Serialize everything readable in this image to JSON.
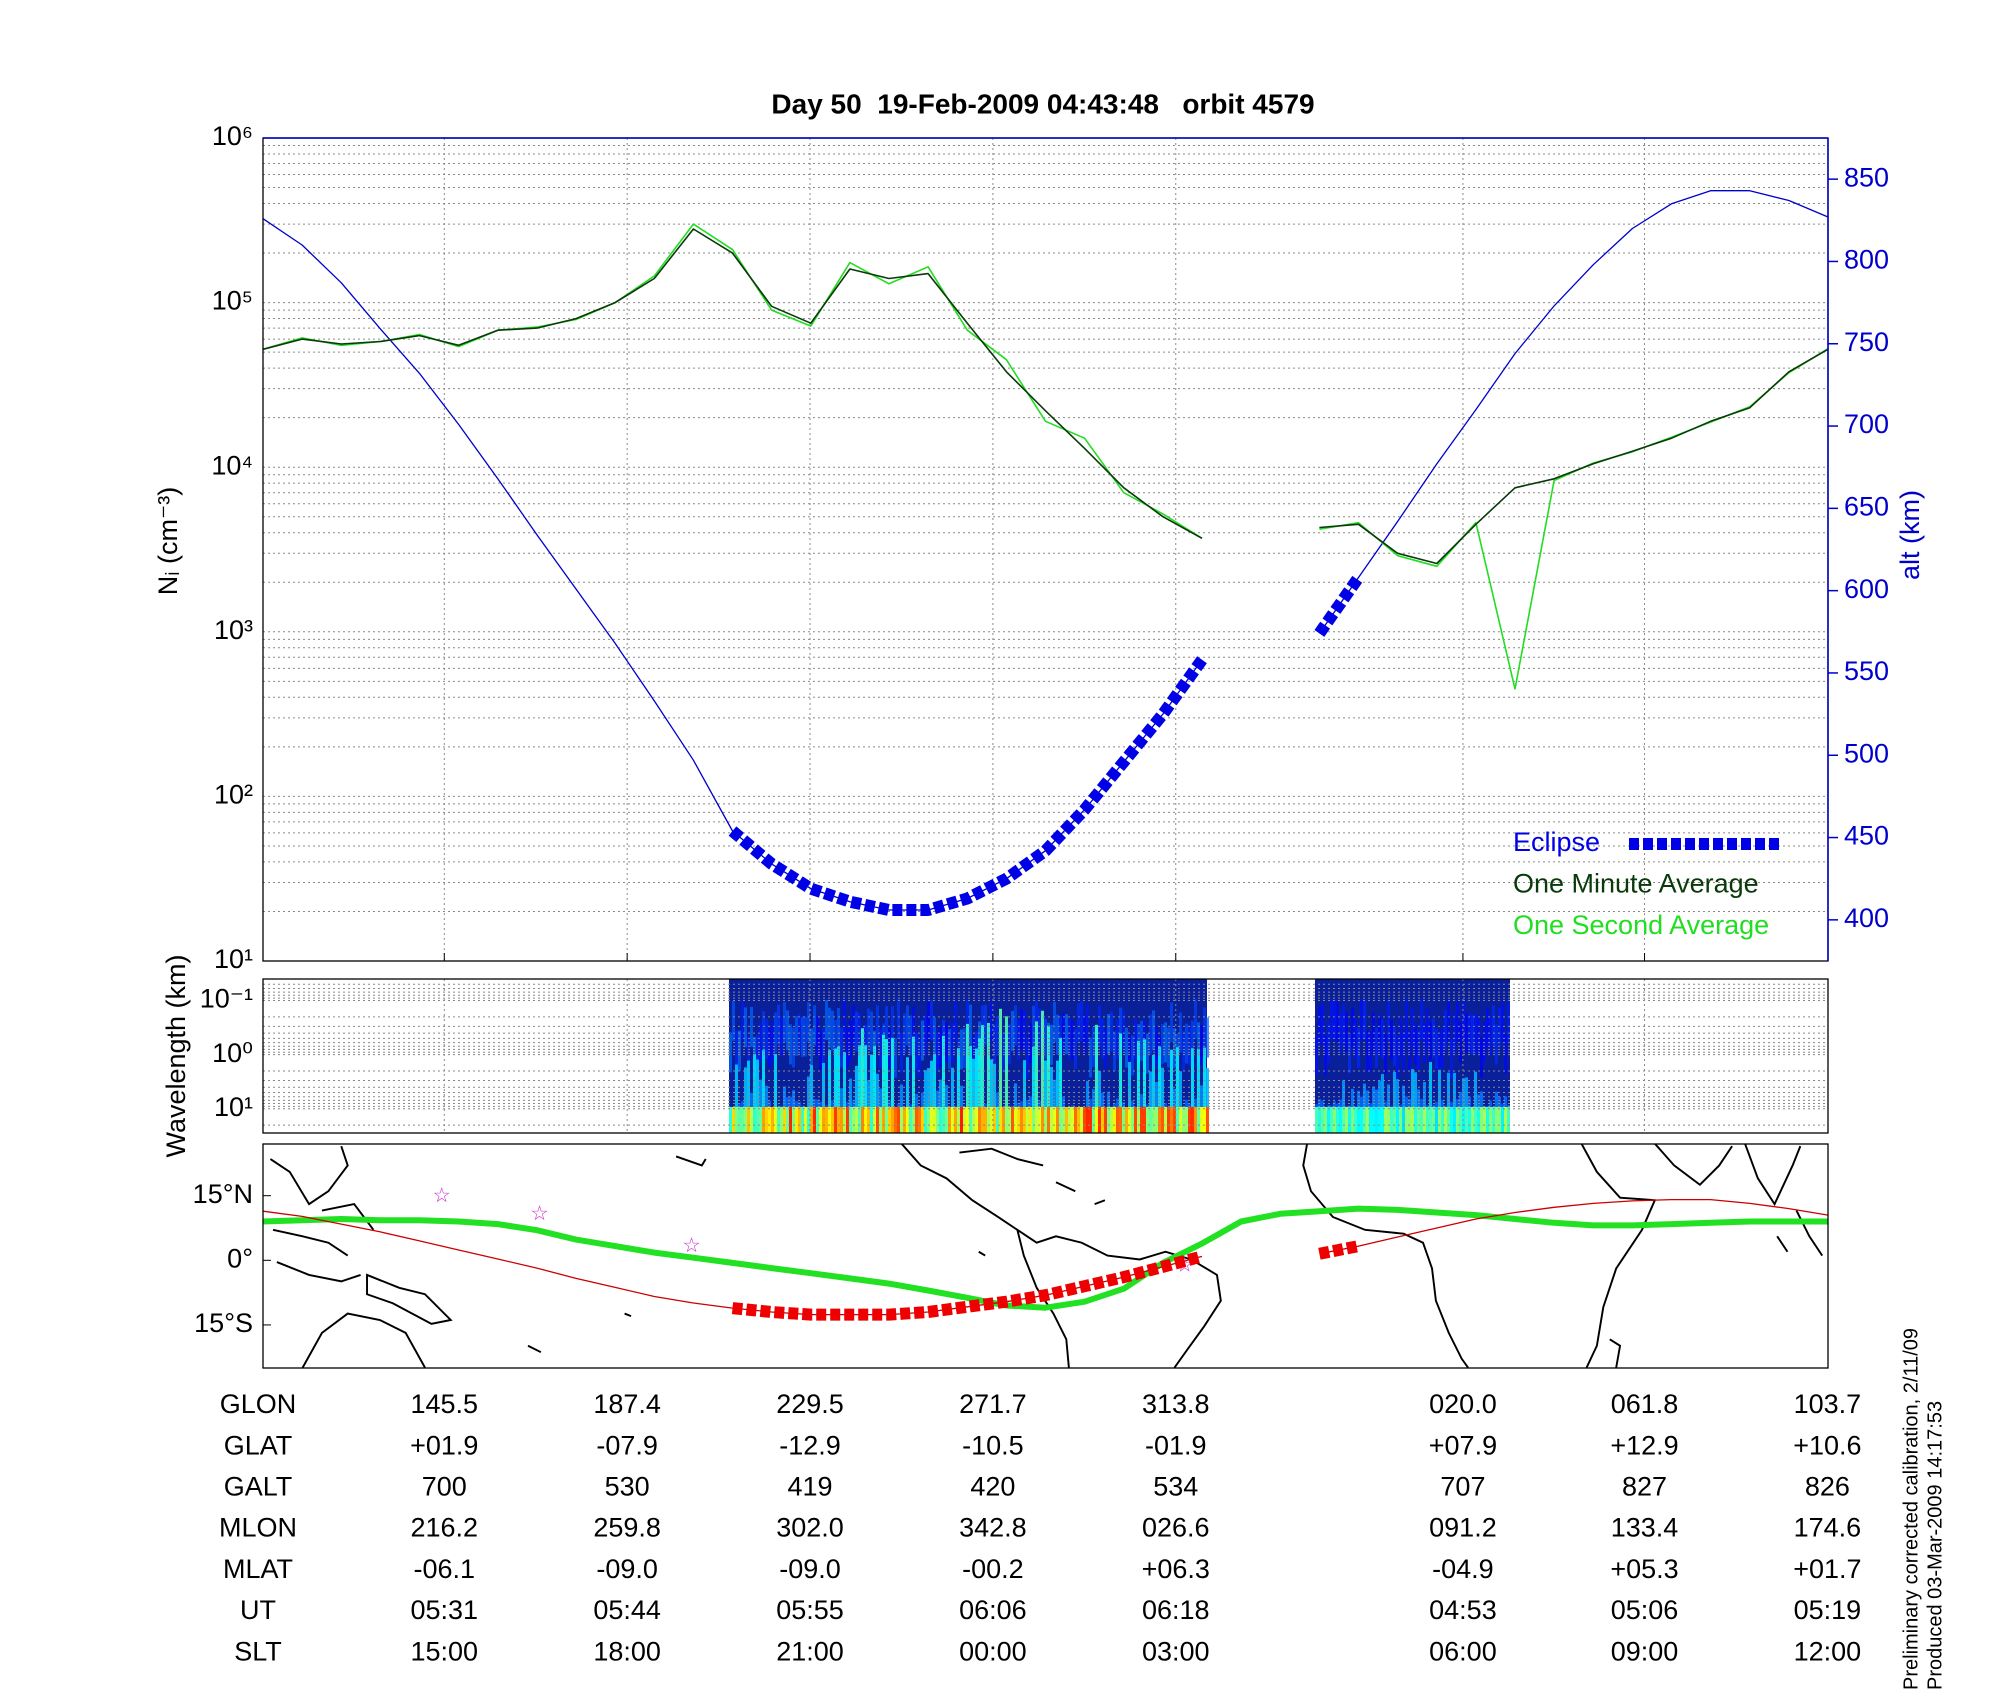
{
  "chart_data": [
    {
      "type": "line",
      "title": "Day 50  19-Feb-2009 04:43:48   orbit 4579",
      "ylabel": "Nᵢ (cm⁻³)",
      "y2label": "alt (km)",
      "y2color": "#0000cc",
      "log": true,
      "ylim": [
        10,
        1000000
      ],
      "yticks": [
        {
          "value": 10,
          "label": "10¹"
        },
        {
          "value": 100,
          "label": "10²"
        },
        {
          "value": 1000,
          "label": "10³"
        },
        {
          "value": 10000,
          "label": "10⁴"
        },
        {
          "value": 100000,
          "label": "10⁵"
        },
        {
          "value": 1000000,
          "label": "10⁶"
        }
      ],
      "y2lim": [
        375,
        875
      ],
      "y2ticks": [
        400,
        450,
        500,
        550,
        600,
        650,
        700,
        750,
        800,
        850
      ],
      "grid": true,
      "legend": "lower right",
      "series": [
        {
          "color": "#0000cc",
          "axis": "y2",
          "values": [
            826,
            810,
            787,
            759,
            732,
            701,
            668,
            634,
            601,
            568,
            533,
            497,
            454,
            434,
            419,
            411,
            406,
            406,
            413,
            425,
            442,
            467,
            496,
            525,
            558,
            null,
            null,
            574,
            608,
            642,
            677,
            710,
            744,
            773,
            798,
            820,
            835,
            843,
            843,
            837,
            827
          ]
        },
        {
          "name": "Eclipse",
          "color": "#0000e6",
          "axis": "y2",
          "linestyle": "blocks",
          "values": [
            null,
            null,
            null,
            null,
            null,
            null,
            null,
            null,
            null,
            null,
            null,
            null,
            454,
            434,
            419,
            411,
            406,
            406,
            413,
            425,
            442,
            467,
            496,
            525,
            558,
            null,
            null,
            574,
            608,
            null,
            null,
            null,
            null,
            null,
            null,
            null,
            null,
            null,
            null,
            null,
            null
          ]
        },
        {
          "name": "One Minute Average",
          "color": "#0a3a0a",
          "values": [
            52000,
            60000,
            56000,
            58000,
            63000,
            55000,
            68000,
            70000,
            80000,
            100000,
            140000,
            280000,
            200000,
            95000,
            75000,
            160000,
            140000,
            150000,
            75000,
            38000,
            22000,
            13000,
            7500,
            5000,
            3700,
            null,
            null,
            4300,
            4500,
            3000,
            2600,
            4500,
            7500,
            8500,
            10500,
            12500,
            15000,
            19000,
            23000,
            38000,
            52000
          ]
        },
        {
          "name": "One Second Average",
          "color": "#22dd22",
          "values": [
            52000,
            61000,
            55000,
            58000,
            64000,
            54000,
            68000,
            71000,
            79000,
            100000,
            145000,
            300000,
            210000,
            90000,
            72000,
            175000,
            130000,
            165000,
            68000,
            45000,
            19000,
            15000,
            7000,
            5200,
            3700,
            null,
            null,
            4200,
            4600,
            2900,
            2500,
            4600,
            450,
            8300,
            10600,
            12400,
            15200,
            18800,
            23300,
            37500,
            52500
          ]
        }
      ]
    },
    {
      "type": "spectrogram",
      "ylabel": "Wavelength (km)",
      "log": true,
      "ylim": [
        28,
        0.04
      ],
      "yticks": [
        {
          "value": 0.1,
          "label": "10⁻¹"
        },
        {
          "value": 1,
          "label": "10⁰"
        },
        {
          "value": 10,
          "label": "10¹"
        }
      ],
      "grid": true
    },
    {
      "type": "map",
      "ylim": [
        -25,
        27
      ],
      "yticks": [
        {
          "value": 15,
          "label": "15°N"
        },
        {
          "value": 0,
          "label": "0°"
        },
        {
          "value": -15,
          "label": "15°S"
        }
      ],
      "series": [
        {
          "color": "#22e022",
          "values": [
            9,
            9.3,
            9.6,
            9.3,
            9.3,
            9,
            8.4,
            7,
            4.8,
            3.3,
            1.8,
            0.6,
            -0.6,
            -1.8,
            -3,
            -4.2,
            -5.4,
            -7,
            -8.7,
            -10.5,
            -11,
            -9.6,
            -6.6,
            -0.6,
            3.9,
            9,
            10.8,
            11.4,
            12,
            11.7,
            11.1,
            10.5,
            9.6,
            8.7,
            8.1,
            8.1,
            8.4,
            8.7,
            9,
            9,
            9
          ]
        },
        {
          "color": "#cc0000",
          "values": [
            11.4,
            10.2,
            8.4,
            6.6,
            4.5,
            2.4,
            0.3,
            -1.8,
            -4.2,
            -6.3,
            -8.4,
            -9.9,
            -11.1,
            -12,
            -12.6,
            -12.6,
            -12.6,
            -12,
            -10.8,
            -9.6,
            -8.1,
            -6,
            -3.9,
            -1.5,
            0.9,
            null,
            null,
            1.5,
            3.3,
            5.4,
            7.5,
            9.6,
            11.1,
            12.3,
            13.2,
            13.8,
            14.1,
            14.1,
            13.2,
            12,
            10.5
          ]
        },
        {
          "color": "#ee0000",
          "linestyle": "blocks",
          "values": [
            null,
            null,
            null,
            null,
            null,
            null,
            null,
            null,
            null,
            null,
            null,
            null,
            -11.1,
            -12,
            -12.6,
            -12.6,
            -12.6,
            -12,
            -10.8,
            -9.6,
            -8.1,
            -6,
            -3.9,
            -1.5,
            0.9,
            null,
            null,
            1.5,
            3.3,
            null,
            null,
            null,
            null,
            null,
            null,
            null,
            null,
            null,
            null,
            null,
            null
          ]
        }
      ]
    }
  ],
  "table": {
    "rows": [
      {
        "label": "GLON",
        "values": [
          "145.5",
          "187.4",
          "229.5",
          "271.7",
          "313.8",
          "020.0",
          "061.8",
          "103.7"
        ]
      },
      {
        "label": "GLAT",
        "values": [
          "+01.9",
          "-07.9",
          "-12.9",
          "-10.5",
          "-01.9",
          "+07.9",
          "+12.9",
          "+10.6"
        ]
      },
      {
        "label": "GALT",
        "values": [
          "700",
          "530",
          "419",
          "420",
          "534",
          "707",
          "827",
          "826"
        ]
      },
      {
        "label": "MLON",
        "values": [
          "216.2",
          "259.8",
          "302.0",
          "342.8",
          "026.6",
          "091.2",
          "133.4",
          "174.6"
        ]
      },
      {
        "label": "MLAT",
        "values": [
          "-06.1",
          "-09.0",
          "-09.0",
          "-00.2",
          "+06.3",
          "-04.9",
          "+05.3",
          "+01.7"
        ]
      },
      {
        "label": "UT",
        "values": [
          "05:31",
          "05:44",
          "05:55",
          "06:06",
          "06:18",
          "04:53",
          "05:06",
          "05:19"
        ]
      },
      {
        "label": "SLT",
        "values": [
          "15:00",
          "18:00",
          "21:00",
          "00:00",
          "03:00",
          "06:00",
          "09:00",
          "12:00"
        ]
      }
    ]
  },
  "notes": [
    "Preliminary corrected calibration, 2/11/09",
    "Produced 03-Mar-2009 14:17:53"
  ]
}
